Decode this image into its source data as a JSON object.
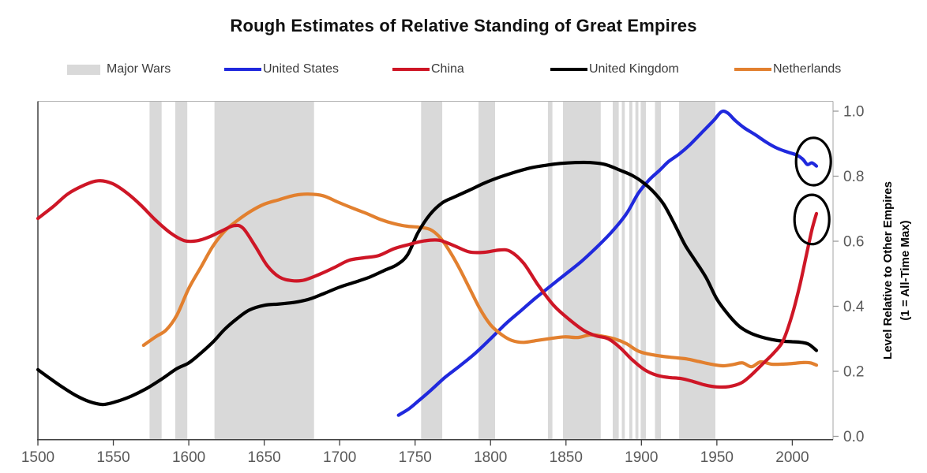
{
  "title": "Rough Estimates of Relative Standing of Great Empires",
  "legend": {
    "items": [
      {
        "label": "Major Wars",
        "swatch": "band",
        "color": "#d9d9d9"
      },
      {
        "label": "United States",
        "swatch": "line",
        "color": "#2029dd"
      },
      {
        "label": "China",
        "swatch": "line",
        "color": "#ce1626"
      },
      {
        "label": "United Kingdom",
        "swatch": "line",
        "color": "#000000"
      },
      {
        "label": "Netherlands",
        "swatch": "line",
        "color": "#e2802f"
      }
    ]
  },
  "axes": {
    "y": {
      "title_lines": [
        "Level Relative to Other Empires",
        "(1 = All-Time Max)"
      ]
    }
  },
  "chart_data": {
    "type": "line",
    "title": "Rough Estimates of Relative Standing of Great Empires",
    "xlabel": "",
    "ylabel": "Level Relative to Other Empires (1 = All-Time Max)",
    "x_range": [
      1500,
      2027
    ],
    "y_range": [
      0,
      1.03
    ],
    "grid": false,
    "legend_position": "top",
    "x_ticks": [
      1500,
      1550,
      1600,
      1650,
      1700,
      1750,
      1800,
      1850,
      1900,
      1950,
      2000
    ],
    "y_ticks": [
      {
        "v": 1.0,
        "label": "1.0"
      },
      {
        "v": 0.8,
        "label": "0.8"
      },
      {
        "v": 0.6,
        "label": "0.6"
      },
      {
        "v": 0.4,
        "label": "0.4"
      },
      {
        "v": 0.2,
        "label": "0.2"
      },
      {
        "v": 0.0,
        "label": "0.0"
      }
    ],
    "war_bands": {
      "label": "Major Wars",
      "color": "#d9d9d9",
      "intervals": [
        [
          1574,
          1582
        ],
        [
          1591,
          1599
        ],
        [
          1617,
          1683
        ],
        [
          1754,
          1768
        ],
        [
          1792,
          1803
        ],
        [
          1838,
          1841
        ],
        [
          1848,
          1873
        ],
        [
          1881,
          1885
        ],
        [
          1887,
          1889
        ],
        [
          1892,
          1894
        ],
        [
          1896,
          1898
        ],
        [
          1899.5,
          1903
        ],
        [
          1909,
          1913
        ],
        [
          1925,
          1949
        ]
      ]
    },
    "draw_order": [
      "United States",
      "Netherlands",
      "United Kingdom",
      "China"
    ],
    "series": [
      {
        "name": "United States",
        "color": "#2029dd",
        "points": [
          [
            1739,
            0.065
          ],
          [
            1746,
            0.085
          ],
          [
            1752,
            0.108
          ],
          [
            1760,
            0.14
          ],
          [
            1770,
            0.182
          ],
          [
            1780,
            0.218
          ],
          [
            1790,
            0.256
          ],
          [
            1800,
            0.3
          ],
          [
            1810,
            0.346
          ],
          [
            1820,
            0.386
          ],
          [
            1830,
            0.426
          ],
          [
            1840,
            0.463
          ],
          [
            1850,
            0.5
          ],
          [
            1860,
            0.537
          ],
          [
            1870,
            0.58
          ],
          [
            1880,
            0.627
          ],
          [
            1890,
            0.684
          ],
          [
            1898,
            0.748
          ],
          [
            1905,
            0.788
          ],
          [
            1912,
            0.818
          ],
          [
            1918,
            0.845
          ],
          [
            1925,
            0.868
          ],
          [
            1932,
            0.896
          ],
          [
            1940,
            0.934
          ],
          [
            1948,
            0.972
          ],
          [
            1953,
            0.998
          ],
          [
            1957,
            0.995
          ],
          [
            1962,
            0.972
          ],
          [
            1968,
            0.949
          ],
          [
            1975,
            0.929
          ],
          [
            1983,
            0.904
          ],
          [
            1990,
            0.886
          ],
          [
            1997,
            0.874
          ],
          [
            2003,
            0.865
          ],
          [
            2007,
            0.852
          ],
          [
            2010,
            0.836
          ],
          [
            2013,
            0.841
          ],
          [
            2016,
            0.831
          ]
        ]
      },
      {
        "name": "China",
        "color": "#ce1626",
        "points": [
          [
            1500,
            0.67
          ],
          [
            1510,
            0.706
          ],
          [
            1520,
            0.746
          ],
          [
            1531,
            0.773
          ],
          [
            1540,
            0.786
          ],
          [
            1549,
            0.778
          ],
          [
            1558,
            0.752
          ],
          [
            1568,
            0.712
          ],
          [
            1578,
            0.665
          ],
          [
            1588,
            0.625
          ],
          [
            1597,
            0.602
          ],
          [
            1605,
            0.601
          ],
          [
            1614,
            0.614
          ],
          [
            1622,
            0.632
          ],
          [
            1630,
            0.648
          ],
          [
            1636,
            0.64
          ],
          [
            1644,
            0.585
          ],
          [
            1652,
            0.525
          ],
          [
            1660,
            0.49
          ],
          [
            1668,
            0.479
          ],
          [
            1676,
            0.48
          ],
          [
            1686,
            0.497
          ],
          [
            1696,
            0.518
          ],
          [
            1706,
            0.541
          ],
          [
            1716,
            0.549
          ],
          [
            1726,
            0.556
          ],
          [
            1736,
            0.577
          ],
          [
            1746,
            0.59
          ],
          [
            1756,
            0.601
          ],
          [
            1766,
            0.603
          ],
          [
            1776,
            0.586
          ],
          [
            1786,
            0.567
          ],
          [
            1796,
            0.566
          ],
          [
            1806,
            0.573
          ],
          [
            1813,
            0.569
          ],
          [
            1822,
            0.532
          ],
          [
            1832,
            0.462
          ],
          [
            1842,
            0.402
          ],
          [
            1852,
            0.36
          ],
          [
            1862,
            0.325
          ],
          [
            1870,
            0.309
          ],
          [
            1878,
            0.3
          ],
          [
            1886,
            0.272
          ],
          [
            1894,
            0.235
          ],
          [
            1902,
            0.205
          ],
          [
            1910,
            0.188
          ],
          [
            1918,
            0.181
          ],
          [
            1926,
            0.178
          ],
          [
            1934,
            0.169
          ],
          [
            1942,
            0.158
          ],
          [
            1950,
            0.152
          ],
          [
            1958,
            0.153
          ],
          [
            1966,
            0.164
          ],
          [
            1972,
            0.185
          ],
          [
            1980,
            0.221
          ],
          [
            1988,
            0.258
          ],
          [
            1994,
            0.295
          ],
          [
            2000,
            0.375
          ],
          [
            2005,
            0.465
          ],
          [
            2009,
            0.55
          ],
          [
            2013,
            0.635
          ],
          [
            2016,
            0.685
          ]
        ]
      },
      {
        "name": "United Kingdom",
        "color": "#000000",
        "points": [
          [
            1500,
            0.205
          ],
          [
            1508,
            0.178
          ],
          [
            1516,
            0.152
          ],
          [
            1525,
            0.126
          ],
          [
            1534,
            0.107
          ],
          [
            1543,
            0.098
          ],
          [
            1552,
            0.107
          ],
          [
            1562,
            0.124
          ],
          [
            1572,
            0.147
          ],
          [
            1582,
            0.176
          ],
          [
            1592,
            0.208
          ],
          [
            1600,
            0.226
          ],
          [
            1608,
            0.256
          ],
          [
            1616,
            0.29
          ],
          [
            1624,
            0.33
          ],
          [
            1632,
            0.362
          ],
          [
            1640,
            0.388
          ],
          [
            1650,
            0.403
          ],
          [
            1660,
            0.407
          ],
          [
            1670,
            0.412
          ],
          [
            1680,
            0.422
          ],
          [
            1690,
            0.44
          ],
          [
            1700,
            0.459
          ],
          [
            1710,
            0.474
          ],
          [
            1720,
            0.49
          ],
          [
            1730,
            0.511
          ],
          [
            1738,
            0.528
          ],
          [
            1745,
            0.558
          ],
          [
            1752,
            0.627
          ],
          [
            1760,
            0.683
          ],
          [
            1768,
            0.718
          ],
          [
            1776,
            0.736
          ],
          [
            1786,
            0.757
          ],
          [
            1796,
            0.779
          ],
          [
            1806,
            0.797
          ],
          [
            1816,
            0.812
          ],
          [
            1826,
            0.825
          ],
          [
            1836,
            0.833
          ],
          [
            1846,
            0.839
          ],
          [
            1856,
            0.842
          ],
          [
            1866,
            0.842
          ],
          [
            1876,
            0.836
          ],
          [
            1886,
            0.818
          ],
          [
            1894,
            0.802
          ],
          [
            1901,
            0.781
          ],
          [
            1908,
            0.752
          ],
          [
            1915,
            0.712
          ],
          [
            1922,
            0.652
          ],
          [
            1929,
            0.588
          ],
          [
            1936,
            0.538
          ],
          [
            1943,
            0.487
          ],
          [
            1950,
            0.422
          ],
          [
            1958,
            0.372
          ],
          [
            1965,
            0.338
          ],
          [
            1972,
            0.318
          ],
          [
            1979,
            0.306
          ],
          [
            1986,
            0.298
          ],
          [
            1993,
            0.293
          ],
          [
            2000,
            0.291
          ],
          [
            2006,
            0.289
          ],
          [
            2011,
            0.283
          ],
          [
            2016,
            0.264
          ]
        ]
      },
      {
        "name": "Netherlands",
        "color": "#e2802f",
        "points": [
          [
            1570,
            0.28
          ],
          [
            1578,
            0.306
          ],
          [
            1585,
            0.327
          ],
          [
            1592,
            0.372
          ],
          [
            1600,
            0.455
          ],
          [
            1608,
            0.52
          ],
          [
            1616,
            0.585
          ],
          [
            1624,
            0.632
          ],
          [
            1632,
            0.663
          ],
          [
            1641,
            0.692
          ],
          [
            1650,
            0.714
          ],
          [
            1660,
            0.728
          ],
          [
            1670,
            0.741
          ],
          [
            1679,
            0.745
          ],
          [
            1689,
            0.74
          ],
          [
            1699,
            0.72
          ],
          [
            1709,
            0.701
          ],
          [
            1718,
            0.685
          ],
          [
            1727,
            0.667
          ],
          [
            1736,
            0.654
          ],
          [
            1745,
            0.646
          ],
          [
            1753,
            0.643
          ],
          [
            1760,
            0.636
          ],
          [
            1766,
            0.614
          ],
          [
            1772,
            0.576
          ],
          [
            1779,
            0.52
          ],
          [
            1786,
            0.456
          ],
          [
            1793,
            0.392
          ],
          [
            1800,
            0.343
          ],
          [
            1807,
            0.314
          ],
          [
            1814,
            0.295
          ],
          [
            1822,
            0.289
          ],
          [
            1831,
            0.295
          ],
          [
            1840,
            0.301
          ],
          [
            1849,
            0.306
          ],
          [
            1858,
            0.304
          ],
          [
            1866,
            0.312
          ],
          [
            1874,
            0.308
          ],
          [
            1882,
            0.3
          ],
          [
            1890,
            0.285
          ],
          [
            1898,
            0.262
          ],
          [
            1906,
            0.252
          ],
          [
            1914,
            0.246
          ],
          [
            1922,
            0.242
          ],
          [
            1930,
            0.238
          ],
          [
            1938,
            0.23
          ],
          [
            1946,
            0.222
          ],
          [
            1954,
            0.217
          ],
          [
            1961,
            0.221
          ],
          [
            1967,
            0.226
          ],
          [
            1973,
            0.214
          ],
          [
            1979,
            0.229
          ],
          [
            1986,
            0.222
          ],
          [
            1993,
            0.222
          ],
          [
            2000,
            0.224
          ],
          [
            2007,
            0.227
          ],
          [
            2012,
            0.226
          ],
          [
            2016,
            0.219
          ]
        ]
      }
    ],
    "annotations": {
      "ellipse_color": "#000000",
      "ellipses": [
        {
          "year": 2014,
          "value": 0.845,
          "rx_years": 11.5,
          "ry_value": 0.073
        },
        {
          "year": 2013,
          "value": 0.667,
          "rx_years": 11.5,
          "ry_value": 0.076
        }
      ]
    }
  }
}
